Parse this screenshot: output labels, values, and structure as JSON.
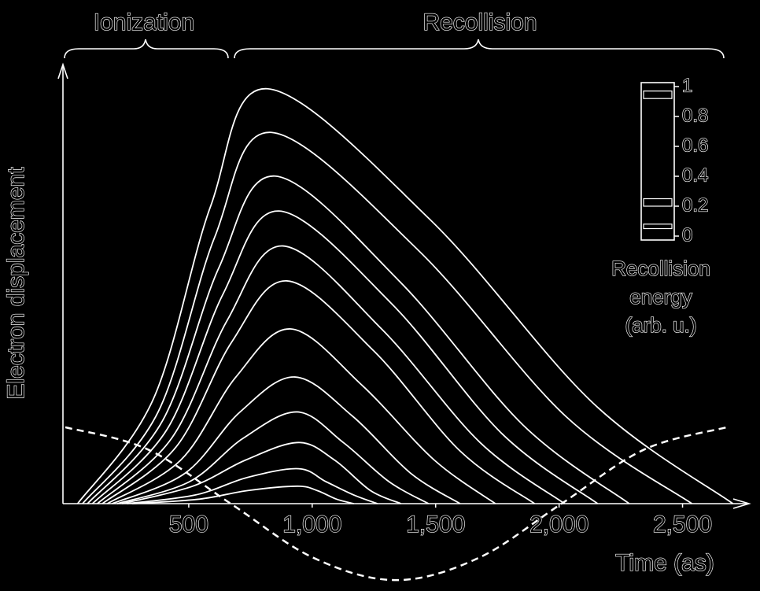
{
  "chart_data": {
    "type": "line",
    "title_left": "Ionization",
    "title_right": "Recollision",
    "x_label": "Time (as)",
    "y_label": "Electron displacement",
    "xlim": [
      0,
      2750
    ],
    "ylim": [
      -0.2,
      1.0
    ],
    "xticks": [
      500,
      {
        "value": 1000,
        "label": "1,000"
      },
      {
        "value": 1500,
        "label": "1,500"
      },
      {
        "value": 2000,
        "label": "2,000"
      },
      {
        "value": 2500,
        "label": "2,500"
      }
    ],
    "series": [
      {
        "color": "#ffffff",
        "x": [
          50,
          357,
          588,
          818,
          1478,
          2138,
          2704
        ],
        "values": [
          0,
          0.24,
          0.68,
          0.95,
          0.65,
          0.23,
          0
        ]
      },
      {
        "color": "#ffffff",
        "x": [
          70,
          376,
          605,
          834,
          1430,
          2027,
          2538
        ],
        "values": [
          0,
          0.21,
          0.61,
          0.85,
          0.58,
          0.2,
          0
        ]
      },
      {
        "color": "#ffffff",
        "x": [
          90,
          394,
          622,
          850,
          1352,
          1854,
          2284
        ],
        "values": [
          0,
          0.19,
          0.54,
          0.75,
          0.51,
          0.18,
          0
        ]
      },
      {
        "color": "#ffffff",
        "x": [
          110,
          412,
          639,
          866,
          1318,
          1769,
          2156
        ],
        "values": [
          0,
          0.17,
          0.48,
          0.67,
          0.46,
          0.16,
          0
        ]
      },
      {
        "color": "#ffffff",
        "x": [
          130,
          431,
          656,
          882,
          1281,
          1680,
          2022
        ],
        "values": [
          0,
          0.15,
          0.42,
          0.59,
          0.4,
          0.14,
          0
        ]
      },
      {
        "color": "#ffffff",
        "x": [
          150,
          449,
          674,
          898,
          1249,
          1600,
          1901
        ],
        "values": [
          0,
          0.13,
          0.37,
          0.51,
          0.35,
          0.12,
          0
        ]
      },
      {
        "color": "#ffffff",
        "x": [
          170,
          468,
          691,
          914,
          1204,
          1494,
          1742
        ],
        "values": [
          0,
          0.1,
          0.29,
          0.4,
          0.27,
          0.1,
          0
        ]
      },
      {
        "color": "#ffffff",
        "x": [
          190,
          486,
          708,
          930,
          1164,
          1398,
          1599
        ],
        "values": [
          0,
          0.07,
          0.21,
          0.29,
          0.2,
          0.07,
          0
        ]
      },
      {
        "color": "#ffffff",
        "x": [
          210,
          502,
          721,
          940,
          1126,
          1312,
          1471
        ],
        "values": [
          0,
          0.05,
          0.15,
          0.21,
          0.14,
          0.05,
          0
        ]
      },
      {
        "color": "#ffffff",
        "x": [
          230,
          516,
          731,
          945,
          1090,
          1236,
          1360
        ],
        "values": [
          0,
          0.04,
          0.1,
          0.14,
          0.1,
          0.03,
          0
        ]
      },
      {
        "color": "#ffffff",
        "x": [
          250,
          528,
          737,
          945,
          1057,
          1168,
          1264
        ],
        "values": [
          0,
          0.02,
          0.06,
          0.08,
          0.05,
          0.02,
          0
        ]
      },
      {
        "color": "#ffffff",
        "x": [
          270,
          538,
          739,
          940,
          1020,
          1100,
          1169
        ],
        "values": [
          0,
          0.01,
          0.03,
          0.04,
          0.03,
          0.01,
          0
        ]
      },
      {
        "color": "#ffffff",
        "dashed": true,
        "x": [
          0,
          335,
          670,
          1005,
          1340,
          1675,
          2010,
          2345,
          2680
        ],
        "values": [
          0.175,
          0.124,
          0,
          -0.124,
          -0.175,
          -0.124,
          0,
          0.124,
          0.175
        ]
      }
    ],
    "colorbar": {
      "lim": [
        0,
        1
      ],
      "ticks": [
        0,
        0.2,
        0.4,
        0.6,
        0.8,
        1
      ],
      "label": [
        "Recollision",
        "energy",
        "(arb. u.)"
      ]
    }
  }
}
